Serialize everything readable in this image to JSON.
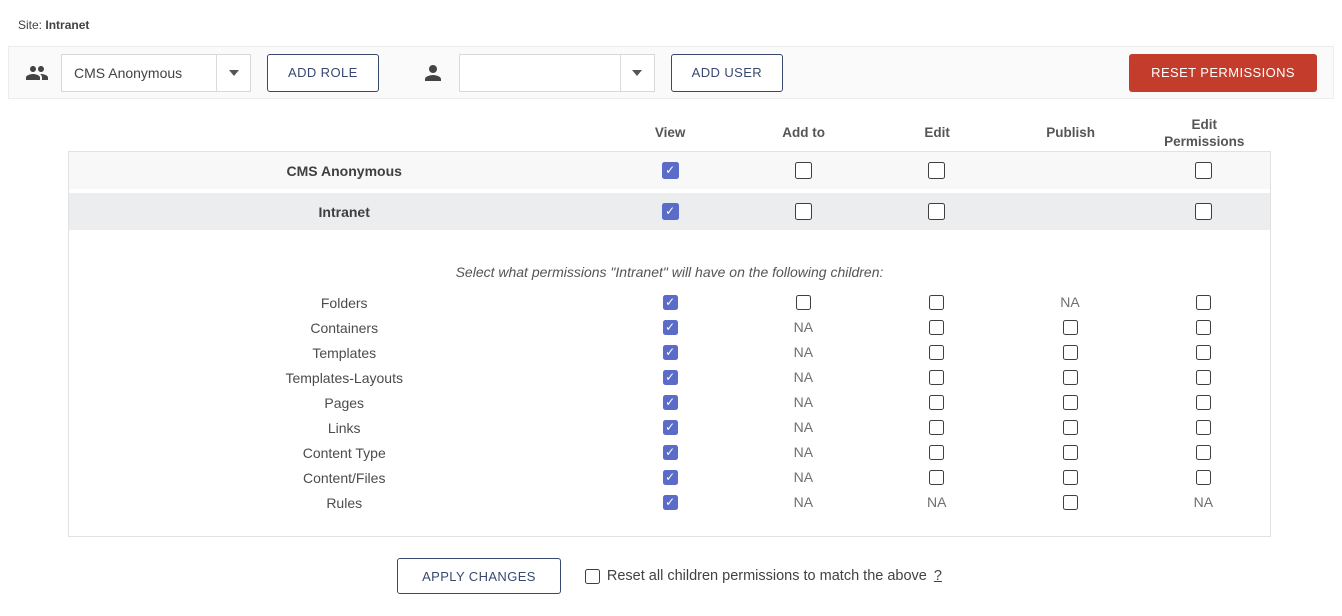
{
  "colors": {
    "accent": "#5b6cc8",
    "danger": "#c43c2c",
    "outline": "#39486f"
  },
  "site": {
    "label": "Site:",
    "name": "Intranet"
  },
  "toolbar": {
    "role_select": {
      "value": "CMS Anonymous"
    },
    "add_role_label": "ADD ROLE",
    "user_select": {
      "value": ""
    },
    "add_user_label": "ADD USER",
    "reset_permissions_label": "RESET PERMISSIONS",
    "icons": [
      "group-icon",
      "person-icon",
      "chevron-down-icon"
    ]
  },
  "table": {
    "columns": [
      "View",
      "Add to",
      "Edit",
      "Publish",
      "Edit Permissions"
    ],
    "na_label": "NA",
    "main_rows": [
      {
        "label": "CMS Anonymous",
        "cells": [
          "checked",
          "unchecked",
          "unchecked",
          "empty",
          "unchecked"
        ]
      },
      {
        "label": "Intranet",
        "cells": [
          "checked",
          "unchecked",
          "unchecked",
          "empty",
          "unchecked"
        ]
      }
    ],
    "children_note": "Select what permissions \"Intranet\" will have on the following children:",
    "child_rows": [
      {
        "label": "Folders",
        "cells": [
          "checked",
          "unchecked",
          "unchecked",
          "na",
          "unchecked"
        ]
      },
      {
        "label": "Containers",
        "cells": [
          "checked",
          "na",
          "unchecked",
          "unchecked",
          "unchecked"
        ]
      },
      {
        "label": "Templates",
        "cells": [
          "checked",
          "na",
          "unchecked",
          "unchecked",
          "unchecked"
        ]
      },
      {
        "label": "Templates-Layouts",
        "cells": [
          "checked",
          "na",
          "unchecked",
          "unchecked",
          "unchecked"
        ]
      },
      {
        "label": "Pages",
        "cells": [
          "checked",
          "na",
          "unchecked",
          "unchecked",
          "unchecked"
        ]
      },
      {
        "label": "Links",
        "cells": [
          "checked",
          "na",
          "unchecked",
          "unchecked",
          "unchecked"
        ]
      },
      {
        "label": "Content Type",
        "cells": [
          "checked",
          "na",
          "unchecked",
          "unchecked",
          "unchecked"
        ]
      },
      {
        "label": "Content/Files",
        "cells": [
          "checked",
          "na",
          "unchecked",
          "unchecked",
          "unchecked"
        ]
      },
      {
        "label": "Rules",
        "cells": [
          "checked",
          "na",
          "na",
          "unchecked",
          "na"
        ]
      }
    ]
  },
  "footer": {
    "apply_label": "APPLY CHANGES",
    "reset_children_label": "Reset all children permissions to match the above",
    "reset_children_suffix": "?",
    "reset_children_checked": false
  }
}
